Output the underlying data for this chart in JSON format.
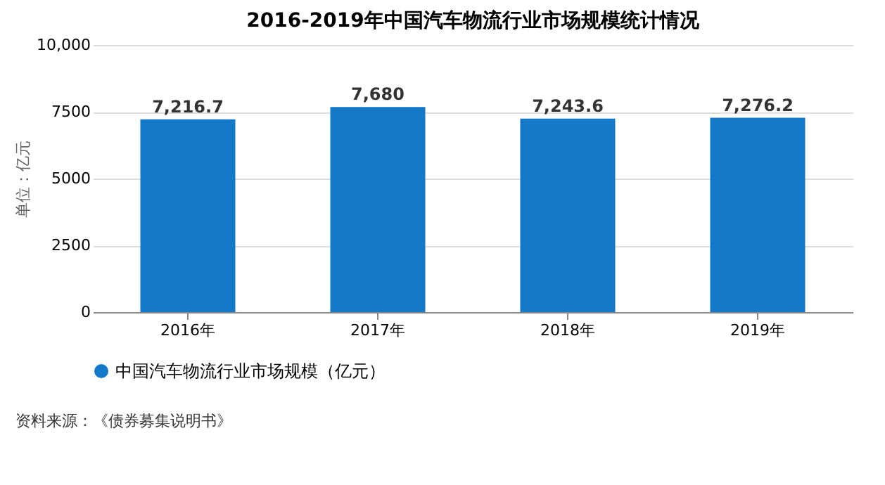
{
  "chart_data": {
    "type": "bar",
    "title": "2016-2019年中国汽车物流行业市场规模统计情况",
    "ylabel": "单位：亿元",
    "categories": [
      "2016年",
      "2017年",
      "2018年",
      "2019年"
    ],
    "series": [
      {
        "name": "中国汽车物流行业市场规模（亿元）",
        "color": "#1479c9",
        "values": [
          7216.7,
          7680,
          7243.6,
          7276.2
        ],
        "value_labels": [
          "7,216.7",
          "7,680",
          "7,243.6",
          "7,276.2"
        ]
      }
    ],
    "ylim": [
      0,
      10000
    ],
    "yticks": [
      0,
      2500,
      5000,
      7500,
      {
        "value": 10000,
        "label": "10,000"
      }
    ],
    "grid": "y",
    "legend": "bottom",
    "annotations": [
      "资料来源：《债券募集说明书》"
    ]
  }
}
